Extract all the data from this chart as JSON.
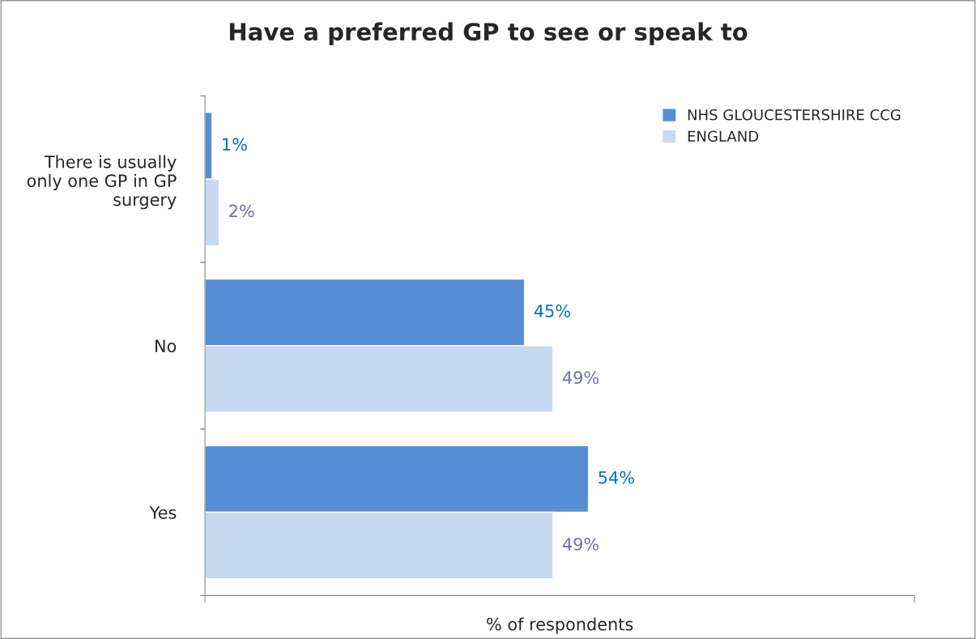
{
  "chart_data": {
    "type": "bar",
    "orientation": "horizontal",
    "title": "Have a preferred GP to see or speak to",
    "xlabel": "% of respondents",
    "categories": [
      "There is usually\nonly one GP in GP\nsurgery",
      "No",
      "Yes"
    ],
    "series": [
      {
        "name": "NHS GLOUCESTERSHIRE CCG",
        "color": "#558ed5",
        "values": [
          1,
          45,
          54
        ],
        "value_labels": [
          "1%",
          "45%",
          "54%"
        ]
      },
      {
        "name": "ENGLAND",
        "color": "#c6d9f0",
        "values": [
          2,
          49,
          49
        ],
        "value_labels": [
          "2%",
          "49%",
          "49%"
        ]
      }
    ],
    "legend": "top right",
    "grid": false
  }
}
